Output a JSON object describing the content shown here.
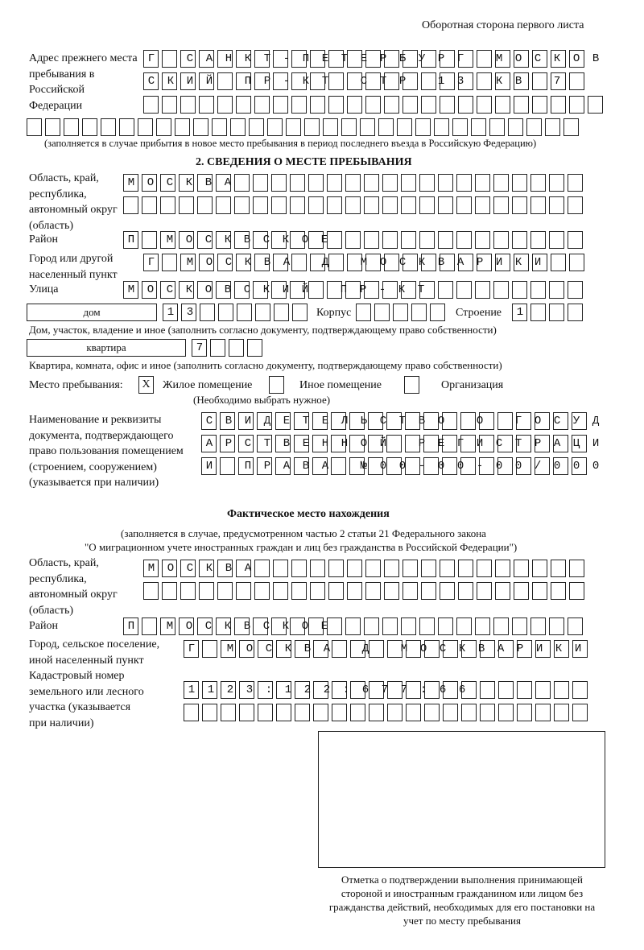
{
  "header": "Оборотная сторона первого листа",
  "prev_address": {
    "label": "Адрес прежнего места пребывания в Российской Федерации",
    "rows": [
      "Г САНКТ-ПЕТЕРБУРГ МОСКОВ",
      "СКИЙ ПР-КТ СТР 13 КВ 7  ",
      "                         ",
      "                              "
    ],
    "note": "(заполняется в случае прибытия в новое место пребывания в период последнего въезда в Российскую Федерацию)"
  },
  "section2": {
    "title": "2. СВЕДЕНИЯ О МЕСТЕ ПРЕБЫВАНИЯ",
    "region_label": "Область, край, республика, автономный округ (область)",
    "region_rows": [
      "МОСКВА                   ",
      "                         "
    ],
    "district_label": "Район",
    "district": "П МОСКВСКОЕ              ",
    "city_label": "Город или другой населенный пункт",
    "city": "Г МОСКВА Д МОСКВАРИКИ   ",
    "street_label": "Улица",
    "street": "МОСКОВСКИЙ ПР-КТ         ",
    "house_type": "дом",
    "house": "13      ",
    "korpus_label": "Корпус",
    "korpus": "     ",
    "building_label": "Строение",
    "building": "1   ",
    "house_note": "Дом, участок, владение и иное (заполнить согласно документу, подтверждающему право собственности)",
    "flat_type": "квартира",
    "flat": "7   ",
    "flat_note": "Квартира, комната, офис и иное (заполнить согласно документу, подтверждающему право собственности)",
    "stay_label": "Место пребывания:",
    "stay_options": [
      {
        "label": "Жилое помещение",
        "mark": "X"
      },
      {
        "label": "Иное помещение",
        "mark": ""
      },
      {
        "label": "Организация",
        "mark": ""
      }
    ],
    "stay_note": "(Необходимо выбрать нужное)",
    "doc_label": "Наименование и реквизиты документа, подтверждающего право пользования помещением (строением, сооружением) (указывается при наличии)",
    "doc_rows": [
      "СВИДЕТЕЛЬСТВО О ГОСУД",
      "АРСТВЕННОЙ РЕГИСТРАЦИ",
      "И ПРАВА №00-00-00/000"
    ]
  },
  "actual": {
    "title": "Фактическое место нахождения",
    "note1": "(заполняется в случае, предусмотренном частью 2 статьи 21 Федерального закона",
    "note2": "\"О миграционном учете иностранных граждан и лиц без гражданства в Российской Федерации\")",
    "region_label": "Область, край, республика, автономный округ (область)",
    "region_rows": [
      "МОСКВА                  ",
      "                        "
    ],
    "district_label": "Район",
    "district": "П МОСКВСКОЕ              ",
    "city_label": "Город, сельское поселение, иной населенный пункт",
    "city": "Г МОСКВА Д МОСКВАРИКИ ",
    "cadastre_label": "Кадастровый номер земельного или лесного участка (указывается при наличии)",
    "cadastre_rows": [
      "1123:122:677:66       ",
      "                      "
    ]
  },
  "confirmation": "Отметка о подтверждении выполнения принимающей стороной и иностранным гражданином или лицом без гражданства действий, необходимых для его постановки на учет по месту пребывания"
}
